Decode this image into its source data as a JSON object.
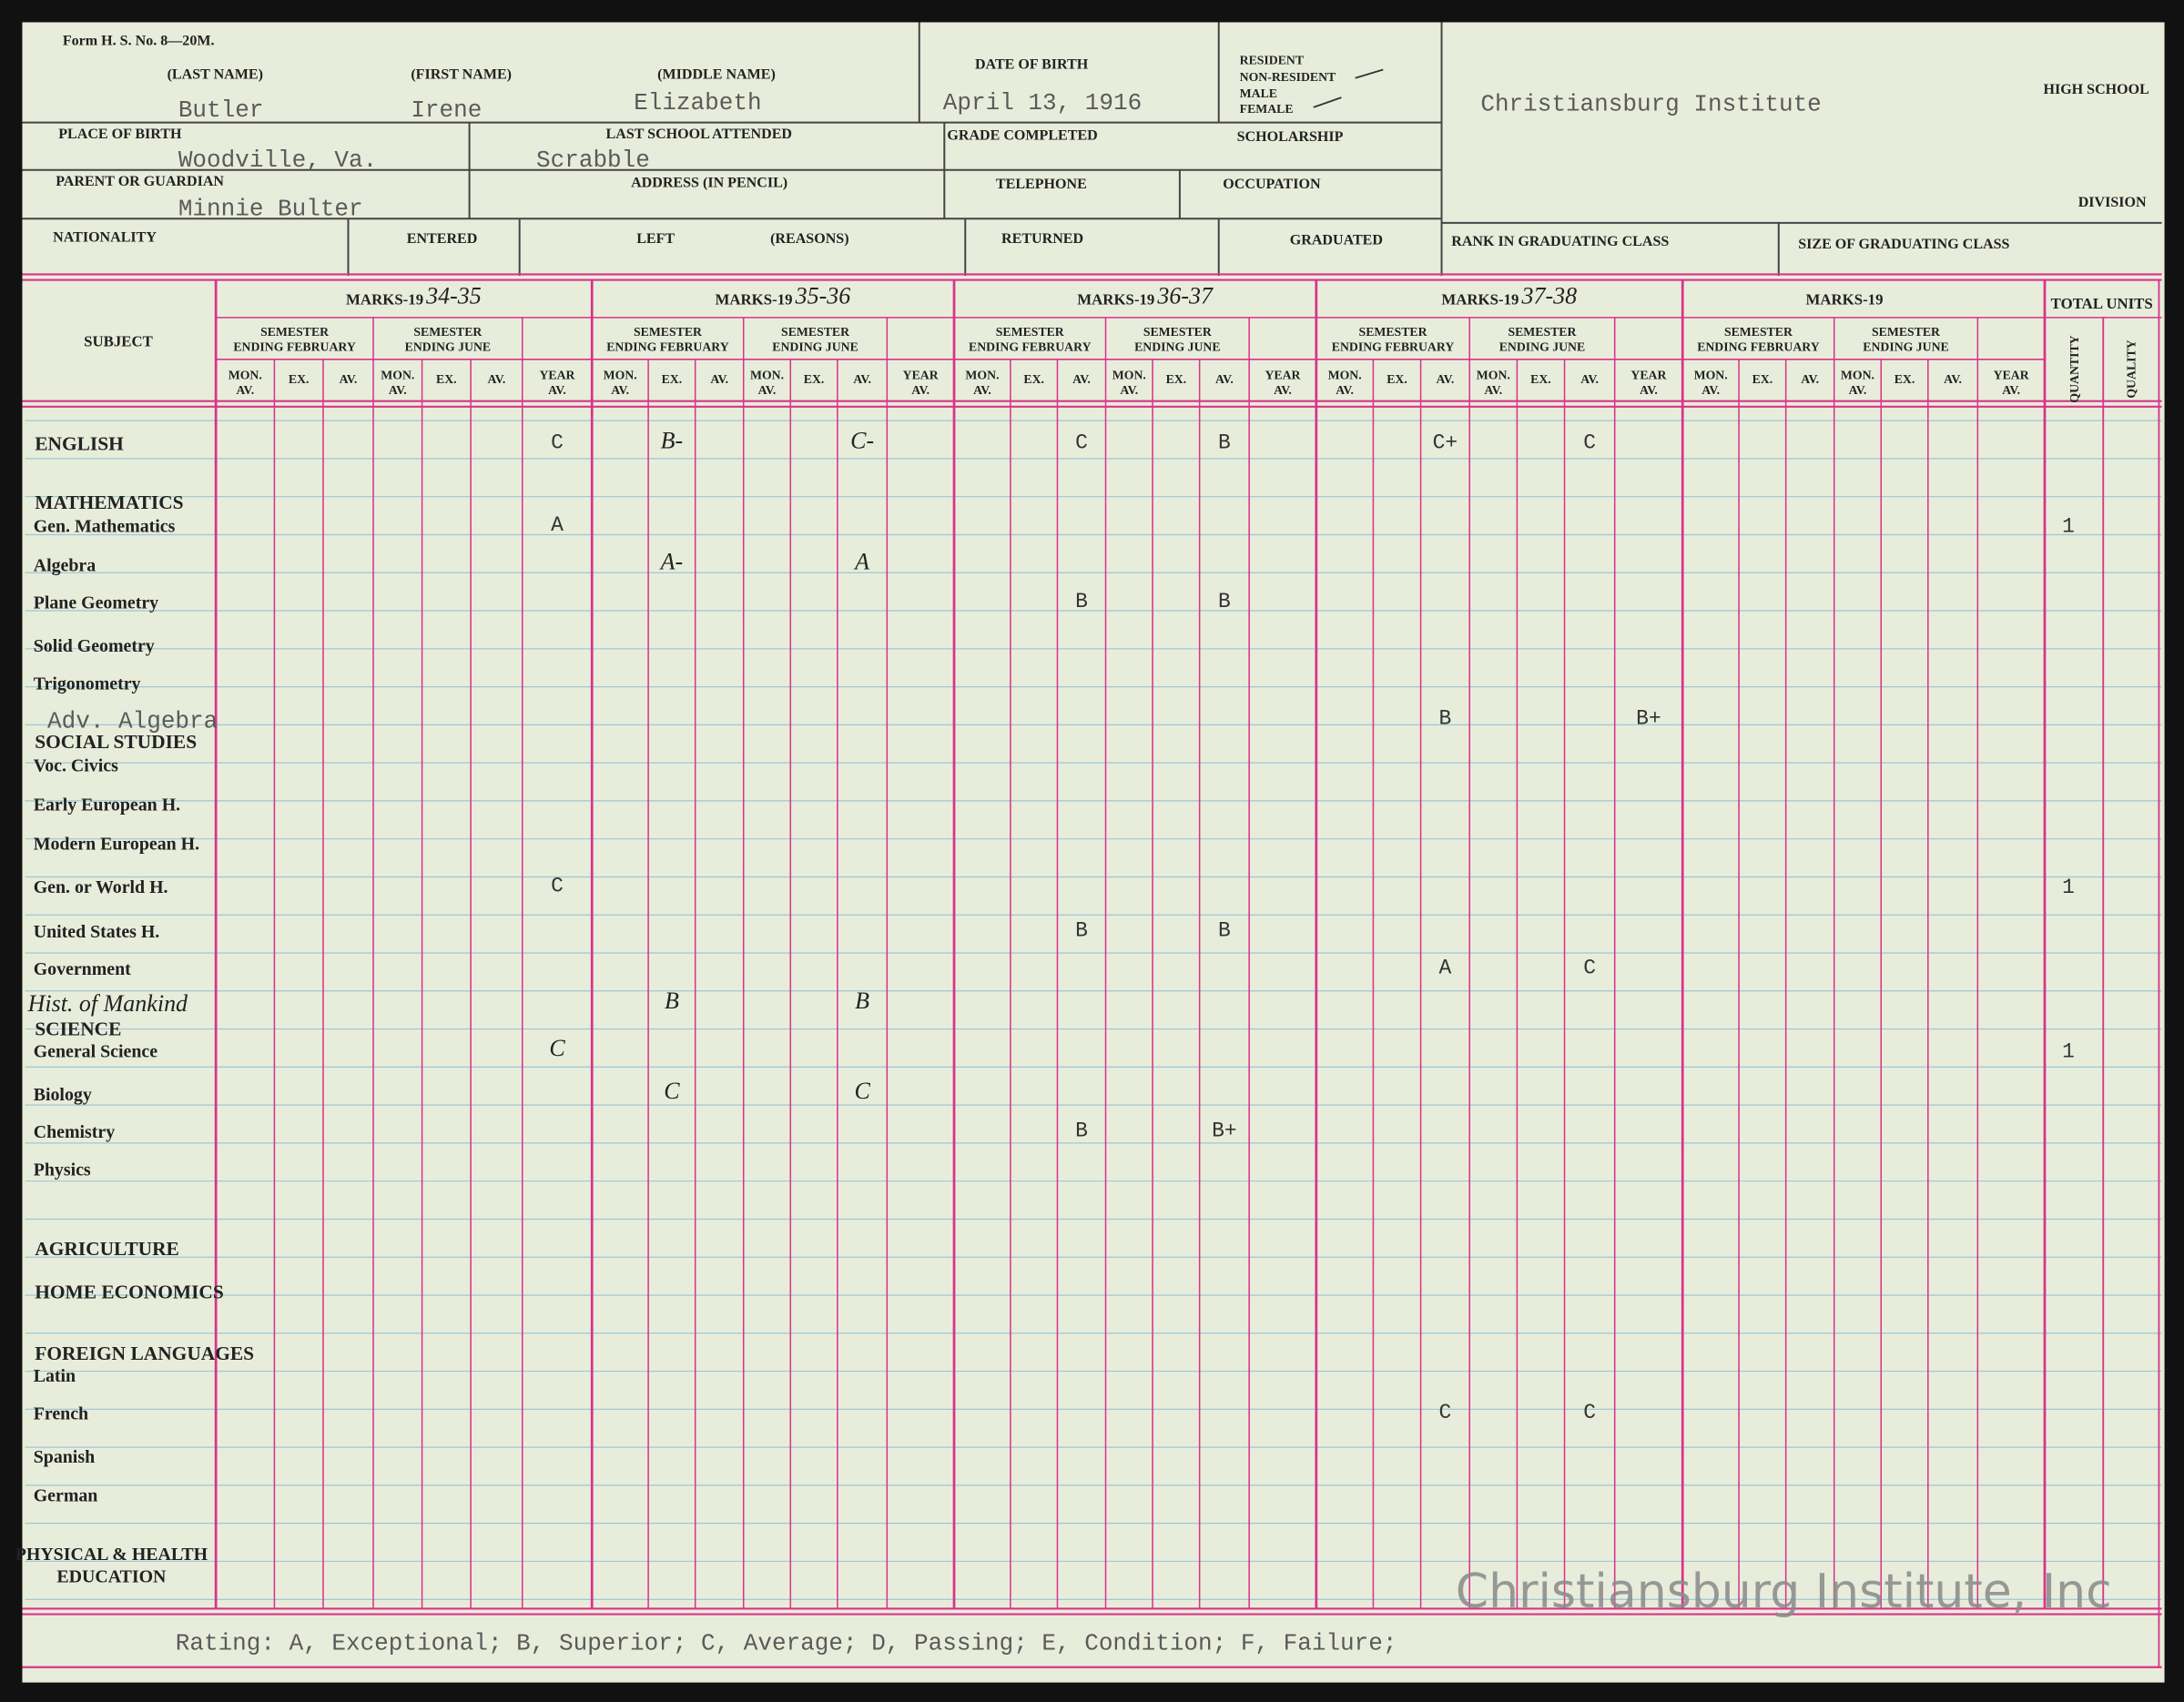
{
  "header": {
    "form": "Form H. S. No. 8—20M.",
    "last_name": {
      "label": "(LAST NAME)",
      "value": "Butler"
    },
    "first_name": {
      "label": "(FIRST NAME)",
      "value": "Irene"
    },
    "middle_name": {
      "label": "(MIDDLE NAME)",
      "value": "Elizabeth"
    },
    "date_of_birth": {
      "label": "DATE OF BIRTH",
      "value": "April 13, 1916"
    },
    "status": [
      "RESIDENT",
      "NON-RESIDENT",
      "MALE",
      "FEMALE"
    ],
    "school": {
      "label": "HIGH SCHOOL",
      "value": "Christiansburg Institute"
    },
    "place_of_birth": {
      "label": "PLACE OF BIRTH",
      "value": "Woodville, Va."
    },
    "last_school": {
      "label": "LAST SCHOOL ATTENDED",
      "value": "Scrabble"
    },
    "grade_completed": {
      "label": "GRADE COMPLETED"
    },
    "scholarship": {
      "label": "SCHOLARSHIP"
    },
    "parent": {
      "label": "PARENT OR GUARDIAN",
      "value": "Minnie Bulter"
    },
    "address": {
      "label": "ADDRESS (IN PENCIL)"
    },
    "telephone": {
      "label": "TELEPHONE"
    },
    "occupation": {
      "label": "OCCUPATION"
    },
    "division": {
      "label": "DIVISION"
    },
    "nationality": {
      "label": "NATIONALITY"
    },
    "entered": {
      "label": "ENTERED"
    },
    "left": {
      "label": "LEFT"
    },
    "reasons": {
      "label": "(REASONS)"
    },
    "returned": {
      "label": "RETURNED"
    },
    "graduated": {
      "label": "GRADUATED"
    },
    "rank": {
      "label": "RANK IN GRADUATING CLASS"
    },
    "class_size": {
      "label": "SIZE OF GRADUATING CLASS"
    }
  },
  "marks_table": {
    "subject_header": "SUBJECT",
    "years": [
      {
        "label": "MARKS-19",
        "year": "34-35"
      },
      {
        "label": "MARKS-19",
        "year": "35-36"
      },
      {
        "label": "MARKS-19",
        "year": "36-37"
      },
      {
        "label": "MARKS-19",
        "year": "37-38"
      },
      {
        "label": "MARKS-19"
      }
    ],
    "semesters": [
      [
        "SEMESTER",
        "ENDING FEBRUARY"
      ],
      [
        "SEMESTER",
        "ENDING JUNE"
      ]
    ],
    "columns": {
      "mon": [
        "MON.",
        "AV."
      ],
      "ex": [
        "EX."
      ],
      "av": [
        "AV."
      ],
      "year": [
        "YEAR",
        "AV."
      ]
    },
    "total_units": "TOTAL UNITS",
    "quantity": "QUANTITY",
    "quality": "QUALITY",
    "rows": [
      {
        "subject": "ENGLISH",
        "marks": [
          {
            "year": "C"
          },
          {
            "feb_ex": "B-",
            "jun_av": "C-"
          },
          {
            "feb_av": "C",
            "jun_av": "B"
          },
          {
            "feb_av": "C+",
            "jun_av": "C"
          }
        ]
      },
      {
        "subject": "MATHEMATICS"
      },
      {
        "subject": "Gen. Mathematics",
        "marks": [
          {
            "year": "A"
          }
        ],
        "quantity": 1
      },
      {
        "subject": "Algebra",
        "marks": [
          null,
          {
            "feb_ex": "A-",
            "jun_av": "A"
          }
        ]
      },
      {
        "subject": "Plane Geometry",
        "marks": [
          null,
          null,
          {
            "feb_av": "B",
            "jun_av": "B"
          }
        ]
      },
      {
        "subject": "Solid Geometry"
      },
      {
        "subject": "Trigonometry"
      },
      {
        "subject": "Adv. Algebra",
        "marks": [
          null,
          null,
          null,
          {
            "feb_av": "B",
            "year": "B+"
          }
        ]
      },
      {
        "subject": "SOCIAL STUDIES"
      },
      {
        "subject": "Voc. Civics"
      },
      {
        "subject": "Early European H."
      },
      {
        "subject": "Modern European H."
      },
      {
        "subject": "Gen. or World H.",
        "marks": [
          {
            "year": "C"
          }
        ],
        "quantity": 1
      },
      {
        "subject": "United States H.",
        "marks": [
          null,
          null,
          {
            "feb_av": "B",
            "jun_av": "B"
          }
        ]
      },
      {
        "subject": "Government",
        "marks": [
          null,
          null,
          null,
          {
            "feb_av": "A",
            "jun_av": "C"
          }
        ]
      },
      {
        "subject": "Hist. of Mankind",
        "marks": [
          null,
          {
            "feb_ex": "B",
            "jun_av": "B"
          }
        ]
      },
      {
        "subject": "SCIENCE"
      },
      {
        "subject": "General Science",
        "marks": [
          {
            "year": "C"
          }
        ],
        "quantity": 1
      },
      {
        "subject": "Biology",
        "marks": [
          null,
          {
            "feb_ex": "C",
            "jun_av": "C"
          }
        ]
      },
      {
        "subject": "Chemistry",
        "marks": [
          null,
          null,
          {
            "feb_av": "B",
            "jun_av": "B+"
          }
        ]
      },
      {
        "subject": "Physics"
      },
      {
        "subject": "AGRICULTURE"
      },
      {
        "subject": "HOME ECONOMICS"
      },
      {
        "subject": "FOREIGN LANGUAGES"
      },
      {
        "subject": "Latin"
      },
      {
        "subject": "French",
        "marks": [
          null,
          null,
          null,
          {
            "feb_av": "C",
            "jun_av": "C"
          }
        ]
      },
      {
        "subject": "Spanish"
      },
      {
        "subject": "German"
      },
      {
        "subject": [
          "PHYSICAL & HEALTH",
          "EDUCATION"
        ]
      }
    ]
  },
  "rating": "Rating: A, Exceptional; B, Superior; C, Average; D, Passing; E, Condition; F, Failure;",
  "watermark": "Christiansburg Institute, Inc"
}
